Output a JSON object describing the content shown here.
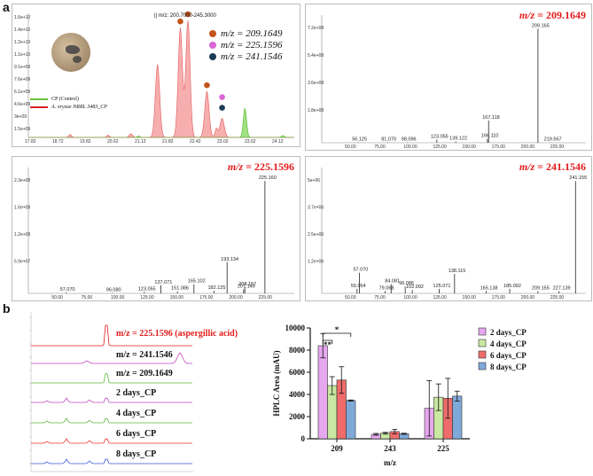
{
  "labels": {
    "a": "a",
    "b": "b"
  },
  "tic": {
    "range_label": "|| m/z: 200.7000-245.3000",
    "y_ticks": [
      "1.6e+10",
      "1.4e+10",
      "1.2e+10",
      "1.1e+10",
      "9.1e+09",
      "7.6e+09",
      "6.1e+09",
      "4.6e+09",
      "3e+09",
      "1.5e+09"
    ],
    "x_ticks": [
      "17.82",
      "18.72",
      "19.82",
      "20.62",
      "21.12",
      "21.82",
      "22.42",
      "23.02",
      "23.62",
      "24.12"
    ],
    "legend": [
      {
        "label": "m/z = 209.1649",
        "color": "#c3541b"
      },
      {
        "label": "m/z = 225.1596",
        "color": "#d966d6"
      },
      {
        "label": "m/z = 241.1546",
        "color": "#1b3c57"
      }
    ],
    "traces": [
      {
        "label": "CP (Control)",
        "color": "#69c33a"
      },
      {
        "label": "A. oryzae NRRL 3483_CP",
        "color": "#d52020"
      }
    ]
  },
  "spectra": [
    {
      "title_prefix": "m/z",
      "title_value": " = 209.1649",
      "y_ticks": [
        "7.2e+08",
        "5.4e+08",
        "3.6e+08",
        "1.8e+08"
      ],
      "x_ticks": [
        "50.00",
        "75.00",
        "100.00",
        "125.00",
        "150.00",
        "175.00",
        "200.00",
        "225.00"
      ]
    },
    {
      "title_prefix": "m/z",
      "title_value": " = 225.1596",
      "y_ticks": [
        "2.3e+08",
        "1.6e+08",
        "1.2e+08",
        "5.9e+07"
      ],
      "x_ticks": [
        "50.00",
        "75.00",
        "100.00",
        "125.00",
        "150.00",
        "175.00",
        "200.00",
        "225.00"
      ]
    },
    {
      "title_prefix": "m/z",
      "title_value": " = 241.1546",
      "y_ticks": [
        "5e+06",
        "3.7e+06",
        "2.5e+06",
        "1.2e+06"
      ],
      "x_ticks": [
        "50.00",
        "75.00",
        "100.00",
        "125.00",
        "150.00",
        "175.00",
        "200.00",
        "225.00"
      ]
    }
  ],
  "hplc_labels": [
    {
      "text": "m/z = 225.1596 (aspergillic acid)",
      "color": "#e31b1b"
    },
    {
      "text": "m/z = 241.1546",
      "color": "#111111"
    },
    {
      "text": "m/z = 209.1649",
      "color": "#111111"
    },
    {
      "text": "2 days_CP",
      "color": "#111111"
    },
    {
      "text": "4 days_CP",
      "color": "#111111"
    },
    {
      "text": "6 days_CP",
      "color": "#111111"
    },
    {
      "text": "8 days_CP",
      "color": "#111111"
    }
  ],
  "chart_data": [
    {
      "type": "line",
      "title": "|| m/z: 200.7000-245.3000",
      "xlabel": "",
      "ylabel": "",
      "series": [
        {
          "name": "A. oryzae NRRL 3483_CP",
          "x": [
            21.0,
            21.6,
            21.8,
            22.3,
            22.7
          ],
          "y": [
            10000000000.0,
            15000000000.0,
            16000000000.0,
            6300000000.0,
            2600000000.0
          ]
        },
        {
          "name": "CP (Control)",
          "x": [
            23.3
          ],
          "y": [
            4000000000.0
          ]
        }
      ]
    },
    {
      "type": "bar",
      "title": "m/z = 209.1649",
      "x": [
        56.125,
        81.07,
        98.096,
        123.055,
        139.122,
        166.11,
        167.118,
        209.165,
        219.567
      ],
      "y": [
        3000000.0,
        4000000.0,
        3000000.0,
        20000000.0,
        8000000.0,
        25000000.0,
        140000000.0,
        720000000.0,
        2000000.0
      ],
      "xlim": [
        25,
        250
      ]
    },
    {
      "type": "bar",
      "title": "m/z = 225.1596",
      "x": [
        57.07,
        96.08,
        123.055,
        137.071,
        151.086,
        165.102,
        182.125,
        193.134,
        207.149,
        208.157,
        225.16
      ],
      "y": [
        2000000.0,
        1000000.0,
        3000000.0,
        16000000.0,
        4000000.0,
        18000000.0,
        5000000.0,
        61000000.0,
        8000000.0,
        12000000.0,
        220000000.0
      ],
      "xlim": [
        25,
        250
      ]
    },
    {
      "type": "bar",
      "title": "m/z = 241.1546",
      "x": [
        55.054,
        57.07,
        79.068,
        84.081,
        96.086,
        102.092,
        125.071,
        138.115,
        165.138,
        185.092,
        209.155,
        227.139,
        241.155
      ],
      "y": [
        200000.0,
        900000.0,
        100000.0,
        400000.0,
        300000.0,
        150000.0,
        200000.0,
        850000.0,
        100000.0,
        200000.0,
        100000.0,
        100000.0,
        4900000.0
      ],
      "xlim": [
        25,
        250
      ]
    },
    {
      "type": "bar",
      "title": "",
      "xlabel": "m/z",
      "ylabel": "HPLC Area (mAU)",
      "categories": [
        "209",
        "243",
        "225"
      ],
      "ylim": [
        0,
        10000
      ],
      "y_ticks": [
        0,
        2000,
        4000,
        6000,
        8000,
        10000
      ],
      "series": [
        {
          "name": "2 days_CP",
          "color": "#e6a8ef",
          "values": [
            8400,
            400,
            2750
          ],
          "errors": [
            1100,
            80,
            2500
          ]
        },
        {
          "name": "4 days_CP",
          "color": "#c9e8a1",
          "values": [
            4800,
            500,
            3750
          ],
          "errors": [
            800,
            80,
            1200
          ]
        },
        {
          "name": "6 days_CP",
          "color": "#f06b6b",
          "values": [
            5300,
            650,
            3650
          ],
          "errors": [
            1200,
            200,
            1800
          ]
        },
        {
          "name": "8 days_CP",
          "color": "#7fa9d8",
          "values": [
            3450,
            450,
            3850
          ],
          "errors": [
            50,
            50,
            450
          ]
        }
      ],
      "significance": [
        "**",
        "*"
      ]
    }
  ]
}
